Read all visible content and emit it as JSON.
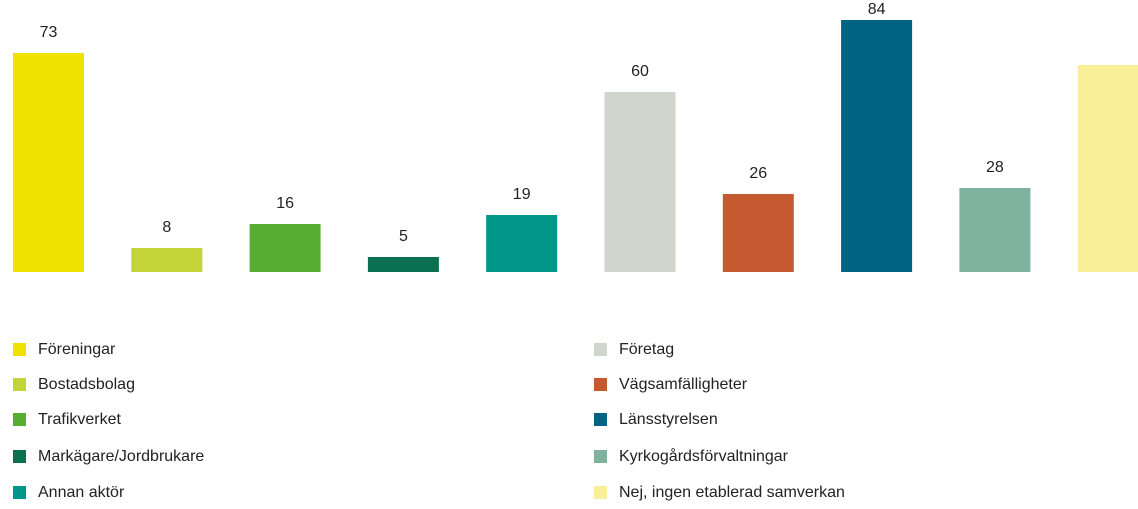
{
  "chart_data": {
    "type": "bar",
    "categories": [
      "Föreningar",
      "Bostadsbolag",
      "Trafikverket",
      "Markägare/Jordbrukare",
      "Annan aktör",
      "Företag",
      "Vägsamfälligheter",
      "Länsstyrelsen",
      "Kyrkogårdsförvaltningar",
      "Nej, ingen etablerad samverkan"
    ],
    "values": [
      73,
      8,
      16,
      5,
      19,
      60,
      26,
      84,
      28,
      69
    ],
    "value_labels": [
      "73",
      "8",
      "16",
      "5",
      "19",
      "60",
      "26",
      "84",
      "28",
      null
    ],
    "colors": [
      "#f0e200",
      "#c3d438",
      "#55ad32",
      "#0a7150",
      "#00978b",
      "#d2d5cb",
      "#c55a30",
      "#006384",
      "#7fb3a0",
      "#f8ef98"
    ],
    "legend": "bottom"
  }
}
